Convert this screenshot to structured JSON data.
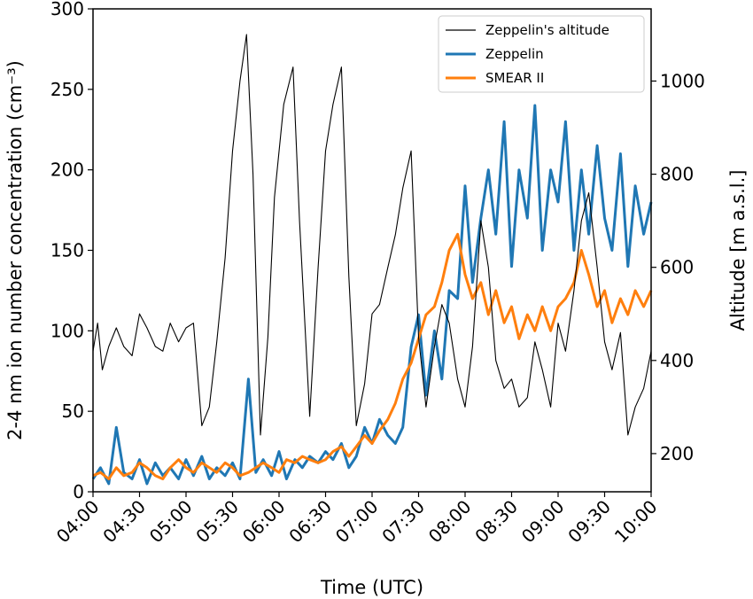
{
  "chart_data": {
    "type": "line",
    "xlabel": "Time (UTC)",
    "ylabel_left": "2-4 nm ion number concentration (cm⁻³)",
    "ylabel_right": "Altitude [m a.s.l.]",
    "x_ticks": [
      "04:00",
      "04:30",
      "05:00",
      "05:30",
      "06:00",
      "06:30",
      "07:00",
      "07:30",
      "08:00",
      "08:30",
      "09:00",
      "09:30",
      "10:00"
    ],
    "x_range_hours": [
      4,
      10
    ],
    "ylim_left": [
      0,
      300
    ],
    "yticks_left": [
      0,
      50,
      100,
      150,
      200,
      250,
      300
    ],
    "ylim_right": [
      118,
      1155
    ],
    "yticks_right": [
      200,
      400,
      600,
      800,
      1000
    ],
    "legend_position": "top-right",
    "colors": {
      "altitude": "#000000",
      "zeppelin": "#1f77b4",
      "smear": "#ff7f0e"
    },
    "series": [
      {
        "name": "Zeppelin's altitude",
        "axis": "right",
        "color": "#000000",
        "points": [
          [
            4.0,
            420
          ],
          [
            4.05,
            480
          ],
          [
            4.1,
            380
          ],
          [
            4.17,
            430
          ],
          [
            4.25,
            470
          ],
          [
            4.33,
            430
          ],
          [
            4.42,
            410
          ],
          [
            4.5,
            500
          ],
          [
            4.58,
            470
          ],
          [
            4.67,
            430
          ],
          [
            4.75,
            420
          ],
          [
            4.83,
            480
          ],
          [
            4.92,
            440
          ],
          [
            5.0,
            470
          ],
          [
            5.08,
            480
          ],
          [
            5.17,
            260
          ],
          [
            5.25,
            300
          ],
          [
            5.33,
            440
          ],
          [
            5.42,
            620
          ],
          [
            5.5,
            850
          ],
          [
            5.58,
            1000
          ],
          [
            5.65,
            1100
          ],
          [
            5.72,
            800
          ],
          [
            5.8,
            240
          ],
          [
            5.88,
            450
          ],
          [
            5.95,
            750
          ],
          [
            6.05,
            950
          ],
          [
            6.15,
            1030
          ],
          [
            6.22,
            700
          ],
          [
            6.33,
            280
          ],
          [
            6.42,
            600
          ],
          [
            6.5,
            850
          ],
          [
            6.58,
            950
          ],
          [
            6.67,
            1030
          ],
          [
            6.75,
            580
          ],
          [
            6.83,
            260
          ],
          [
            6.92,
            350
          ],
          [
            7.0,
            500
          ],
          [
            7.08,
            520
          ],
          [
            7.17,
            600
          ],
          [
            7.25,
            670
          ],
          [
            7.33,
            770
          ],
          [
            7.42,
            850
          ],
          [
            7.5,
            450
          ],
          [
            7.58,
            300
          ],
          [
            7.67,
            430
          ],
          [
            7.75,
            520
          ],
          [
            7.83,
            480
          ],
          [
            7.92,
            360
          ],
          [
            8.0,
            300
          ],
          [
            8.08,
            430
          ],
          [
            8.17,
            700
          ],
          [
            8.25,
            600
          ],
          [
            8.33,
            400
          ],
          [
            8.42,
            340
          ],
          [
            8.5,
            360
          ],
          [
            8.58,
            300
          ],
          [
            8.67,
            320
          ],
          [
            8.75,
            440
          ],
          [
            8.83,
            380
          ],
          [
            8.92,
            300
          ],
          [
            9.0,
            480
          ],
          [
            9.08,
            420
          ],
          [
            9.17,
            550
          ],
          [
            9.25,
            700
          ],
          [
            9.33,
            760
          ],
          [
            9.42,
            600
          ],
          [
            9.5,
            440
          ],
          [
            9.58,
            380
          ],
          [
            9.67,
            460
          ],
          [
            9.75,
            240
          ],
          [
            9.83,
            300
          ],
          [
            9.92,
            340
          ],
          [
            10.0,
            420
          ]
        ]
      },
      {
        "name": "Zeppelin",
        "axis": "left",
        "color": "#1f77b4",
        "points": [
          [
            4.0,
            8
          ],
          [
            4.08,
            15
          ],
          [
            4.17,
            5
          ],
          [
            4.25,
            40
          ],
          [
            4.33,
            12
          ],
          [
            4.42,
            8
          ],
          [
            4.5,
            20
          ],
          [
            4.58,
            5
          ],
          [
            4.67,
            18
          ],
          [
            4.75,
            10
          ],
          [
            4.83,
            15
          ],
          [
            4.92,
            8
          ],
          [
            5.0,
            20
          ],
          [
            5.08,
            10
          ],
          [
            5.17,
            22
          ],
          [
            5.25,
            8
          ],
          [
            5.33,
            15
          ],
          [
            5.42,
            10
          ],
          [
            5.5,
            18
          ],
          [
            5.58,
            8
          ],
          [
            5.67,
            70
          ],
          [
            5.75,
            12
          ],
          [
            5.83,
            20
          ],
          [
            5.92,
            10
          ],
          [
            6.0,
            25
          ],
          [
            6.08,
            8
          ],
          [
            6.17,
            20
          ],
          [
            6.25,
            15
          ],
          [
            6.33,
            22
          ],
          [
            6.42,
            18
          ],
          [
            6.5,
            25
          ],
          [
            6.58,
            20
          ],
          [
            6.67,
            30
          ],
          [
            6.75,
            15
          ],
          [
            6.83,
            22
          ],
          [
            6.92,
            40
          ],
          [
            7.0,
            30
          ],
          [
            7.08,
            45
          ],
          [
            7.17,
            35
          ],
          [
            7.25,
            30
          ],
          [
            7.33,
            40
          ],
          [
            7.42,
            90
          ],
          [
            7.5,
            110
          ],
          [
            7.58,
            60
          ],
          [
            7.67,
            100
          ],
          [
            7.75,
            70
          ],
          [
            7.83,
            125
          ],
          [
            7.92,
            120
          ],
          [
            8.0,
            190
          ],
          [
            8.08,
            130
          ],
          [
            8.17,
            170
          ],
          [
            8.25,
            200
          ],
          [
            8.33,
            160
          ],
          [
            8.42,
            230
          ],
          [
            8.5,
            140
          ],
          [
            8.58,
            200
          ],
          [
            8.67,
            170
          ],
          [
            8.75,
            240
          ],
          [
            8.83,
            150
          ],
          [
            8.92,
            200
          ],
          [
            9.0,
            180
          ],
          [
            9.08,
            230
          ],
          [
            9.17,
            150
          ],
          [
            9.25,
            200
          ],
          [
            9.33,
            160
          ],
          [
            9.42,
            215
          ],
          [
            9.5,
            170
          ],
          [
            9.58,
            150
          ],
          [
            9.67,
            210
          ],
          [
            9.75,
            140
          ],
          [
            9.83,
            190
          ],
          [
            9.92,
            160
          ],
          [
            10.0,
            180
          ]
        ]
      },
      {
        "name": "SMEAR II",
        "axis": "left",
        "color": "#ff7f0e",
        "points": [
          [
            4.0,
            10
          ],
          [
            4.08,
            12
          ],
          [
            4.17,
            8
          ],
          [
            4.25,
            15
          ],
          [
            4.33,
            10
          ],
          [
            4.42,
            12
          ],
          [
            4.5,
            18
          ],
          [
            4.58,
            15
          ],
          [
            4.67,
            10
          ],
          [
            4.75,
            8
          ],
          [
            4.83,
            15
          ],
          [
            4.92,
            20
          ],
          [
            5.0,
            15
          ],
          [
            5.08,
            12
          ],
          [
            5.17,
            18
          ],
          [
            5.25,
            15
          ],
          [
            5.33,
            12
          ],
          [
            5.42,
            18
          ],
          [
            5.5,
            15
          ],
          [
            5.58,
            10
          ],
          [
            5.67,
            12
          ],
          [
            5.75,
            15
          ],
          [
            5.83,
            18
          ],
          [
            5.92,
            15
          ],
          [
            6.0,
            12
          ],
          [
            6.08,
            20
          ],
          [
            6.17,
            18
          ],
          [
            6.25,
            22
          ],
          [
            6.33,
            20
          ],
          [
            6.42,
            18
          ],
          [
            6.5,
            20
          ],
          [
            6.58,
            25
          ],
          [
            6.67,
            28
          ],
          [
            6.75,
            22
          ],
          [
            6.83,
            28
          ],
          [
            6.92,
            35
          ],
          [
            7.0,
            30
          ],
          [
            7.08,
            38
          ],
          [
            7.17,
            45
          ],
          [
            7.25,
            55
          ],
          [
            7.33,
            70
          ],
          [
            7.42,
            80
          ],
          [
            7.5,
            95
          ],
          [
            7.58,
            110
          ],
          [
            7.67,
            115
          ],
          [
            7.75,
            130
          ],
          [
            7.83,
            150
          ],
          [
            7.92,
            160
          ],
          [
            8.0,
            135
          ],
          [
            8.08,
            120
          ],
          [
            8.17,
            130
          ],
          [
            8.25,
            110
          ],
          [
            8.33,
            125
          ],
          [
            8.42,
            105
          ],
          [
            8.5,
            115
          ],
          [
            8.58,
            95
          ],
          [
            8.67,
            110
          ],
          [
            8.75,
            100
          ],
          [
            8.83,
            115
          ],
          [
            8.92,
            100
          ],
          [
            9.0,
            115
          ],
          [
            9.08,
            120
          ],
          [
            9.17,
            130
          ],
          [
            9.25,
            150
          ],
          [
            9.33,
            135
          ],
          [
            9.42,
            115
          ],
          [
            9.5,
            125
          ],
          [
            9.58,
            105
          ],
          [
            9.67,
            120
          ],
          [
            9.75,
            110
          ],
          [
            9.83,
            125
          ],
          [
            9.92,
            115
          ],
          [
            10.0,
            125
          ]
        ]
      }
    ]
  }
}
